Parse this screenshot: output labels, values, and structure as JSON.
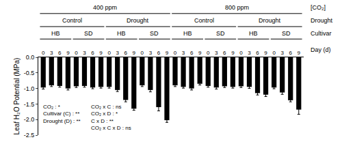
{
  "chart_data": {
    "type": "bar",
    "y_label": "Leaf H₂O Potential (MPa)",
    "header_rows": [
      {
        "label": "[CO₂]",
        "groups": [
          "400 ppm",
          "800 ppm"
        ]
      },
      {
        "label": "Drought",
        "groups": [
          "Control",
          "Drought",
          "Control",
          "Drought"
        ]
      },
      {
        "label": "Cultivar",
        "groups": [
          "HB",
          "SD",
          "HB",
          "SD",
          "HB",
          "SD",
          "HB",
          "SD"
        ]
      }
    ],
    "x_label": "Day (d)",
    "categories": [
      "0",
      "3",
      "6",
      "9",
      "0",
      "3",
      "6",
      "9",
      "0",
      "3",
      "6",
      "9",
      "0",
      "3",
      "6",
      "9",
      "0",
      "3",
      "6",
      "9",
      "0",
      "3",
      "6",
      "9",
      "0",
      "3",
      "6",
      "9",
      "0",
      "3",
      "6",
      "9"
    ],
    "values": [
      -0.97,
      -0.9,
      -0.92,
      -1.0,
      -0.93,
      -0.92,
      -0.97,
      -0.95,
      -0.95,
      -1.05,
      -1.37,
      -1.65,
      -0.9,
      -1.05,
      -1.6,
      -2.02,
      -0.9,
      -0.95,
      -1.0,
      -0.85,
      -0.92,
      -0.97,
      -0.93,
      -0.95,
      -0.93,
      -0.95,
      -1.15,
      -1.2,
      -0.97,
      -1.13,
      -1.38,
      -1.68
    ],
    "errors": [
      0.05,
      0.04,
      0.04,
      0.05,
      0.04,
      0.04,
      0.04,
      0.04,
      0.04,
      0.05,
      0.06,
      0.05,
      0.04,
      0.06,
      0.12,
      0.07,
      0.04,
      0.04,
      0.05,
      0.04,
      0.04,
      0.05,
      0.04,
      0.04,
      0.04,
      0.05,
      0.06,
      0.06,
      0.04,
      0.06,
      0.05,
      0.15
    ],
    "color": "#000000",
    "ylim": [
      -2.5,
      0
    ],
    "yticks": [
      -2.5,
      {
        "value": -2,
        "label": "-2.0"
      },
      -1.5,
      {
        "value": -1,
        "label": "-1.0"
      },
      -0.5,
      {
        "value": 0,
        "label": "0.0"
      }
    ],
    "grid": false,
    "annotations": [
      [
        "CO₂ : *",
        "Cultivar (C) : **",
        "Drought (D) : **"
      ],
      [
        "CO₂ x C : ns",
        "CO₂ x D : *",
        "C x D : **",
        "CO₂ x C x D : ns"
      ]
    ]
  }
}
